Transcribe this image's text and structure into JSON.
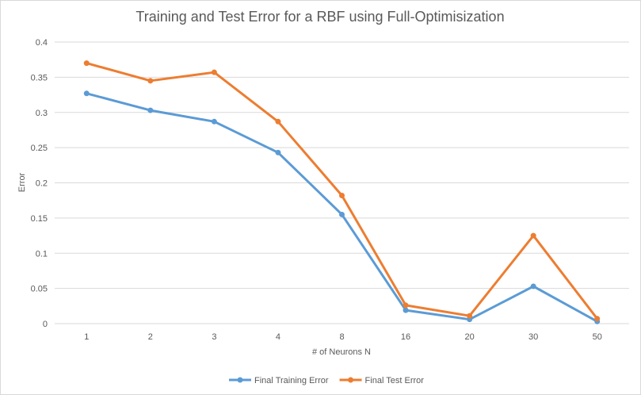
{
  "chart_data": {
    "type": "line",
    "title": "Training and Test Error for a RBF using Full-Optimisization",
    "xlabel": "# of Neurons N",
    "ylabel": "Error",
    "categories": [
      "1",
      "2",
      "3",
      "4",
      "8",
      "16",
      "20",
      "30",
      "50"
    ],
    "ylim": [
      0,
      0.4
    ],
    "yticks": [
      "0",
      "0.05",
      "0.1",
      "0.15",
      "0.2",
      "0.25",
      "0.3",
      "0.35",
      "0.4"
    ],
    "grid": true,
    "legend_position": "bottom",
    "series": [
      {
        "name": "Final Training Error",
        "color": "#5b9bd5",
        "values": [
          0.327,
          0.303,
          0.287,
          0.243,
          0.155,
          0.019,
          0.006,
          0.053,
          0.003
        ]
      },
      {
        "name": "Final Test Error",
        "color": "#ed7d31",
        "values": [
          0.37,
          0.345,
          0.357,
          0.287,
          0.182,
          0.026,
          0.011,
          0.125,
          0.007
        ]
      }
    ]
  }
}
